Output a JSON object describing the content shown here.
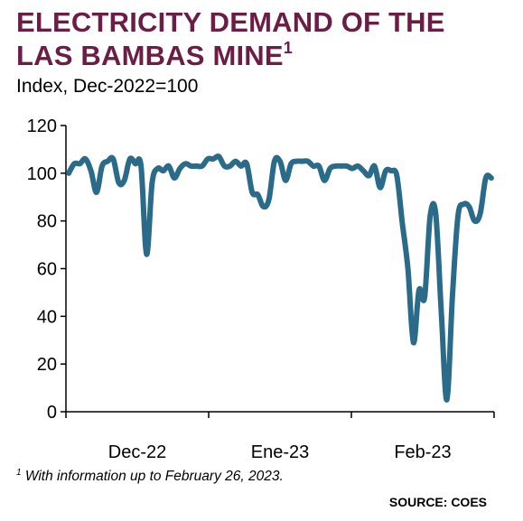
{
  "header": {
    "title_line1": "ELECTRICITY DEMAND OF THE",
    "title_line2": "LAS BAMBAS MINE",
    "title_footnote_mark": "1",
    "subtitle": "Index, Dec-2022=100"
  },
  "footer": {
    "footnote_mark": "1",
    "footnote_text": "With information up to February 26, 2023.",
    "source": "SOURCE: COES"
  },
  "colors": {
    "title": "#6b1d45",
    "series": "#2a6b8a",
    "axis": "#000000"
  },
  "chart_data": {
    "type": "line",
    "title": "ELECTRICITY DEMAND OF THE LAS BAMBAS MINE",
    "subtitle": "Index, Dec-2022=100",
    "xlabel": "",
    "ylabel": "",
    "ylim": [
      0,
      120
    ],
    "yticks": [
      0,
      20,
      40,
      60,
      80,
      100,
      120
    ],
    "xticks": [
      "Dec-22",
      "Ene-23",
      "Feb-23"
    ],
    "grid": false,
    "legend": "none",
    "series": [
      {
        "name": "",
        "values": [
          100,
          104,
          104,
          106,
          101,
          92,
          103,
          105,
          106,
          96,
          97,
          106,
          104,
          103,
          66,
          96,
          102,
          101,
          103,
          98,
          102,
          104,
          103,
          103,
          103,
          106,
          106,
          107,
          103,
          103,
          105,
          103,
          104,
          92,
          91,
          86,
          89,
          105,
          105,
          97,
          104,
          105,
          105,
          105,
          103,
          103,
          97,
          102,
          103,
          103,
          103,
          102,
          103,
          101,
          99,
          103,
          94,
          101,
          101,
          99,
          79,
          60,
          29,
          51,
          48,
          82,
          83,
          42,
          5,
          48,
          82,
          87,
          86,
          80,
          83,
          98,
          98
        ]
      }
    ]
  }
}
